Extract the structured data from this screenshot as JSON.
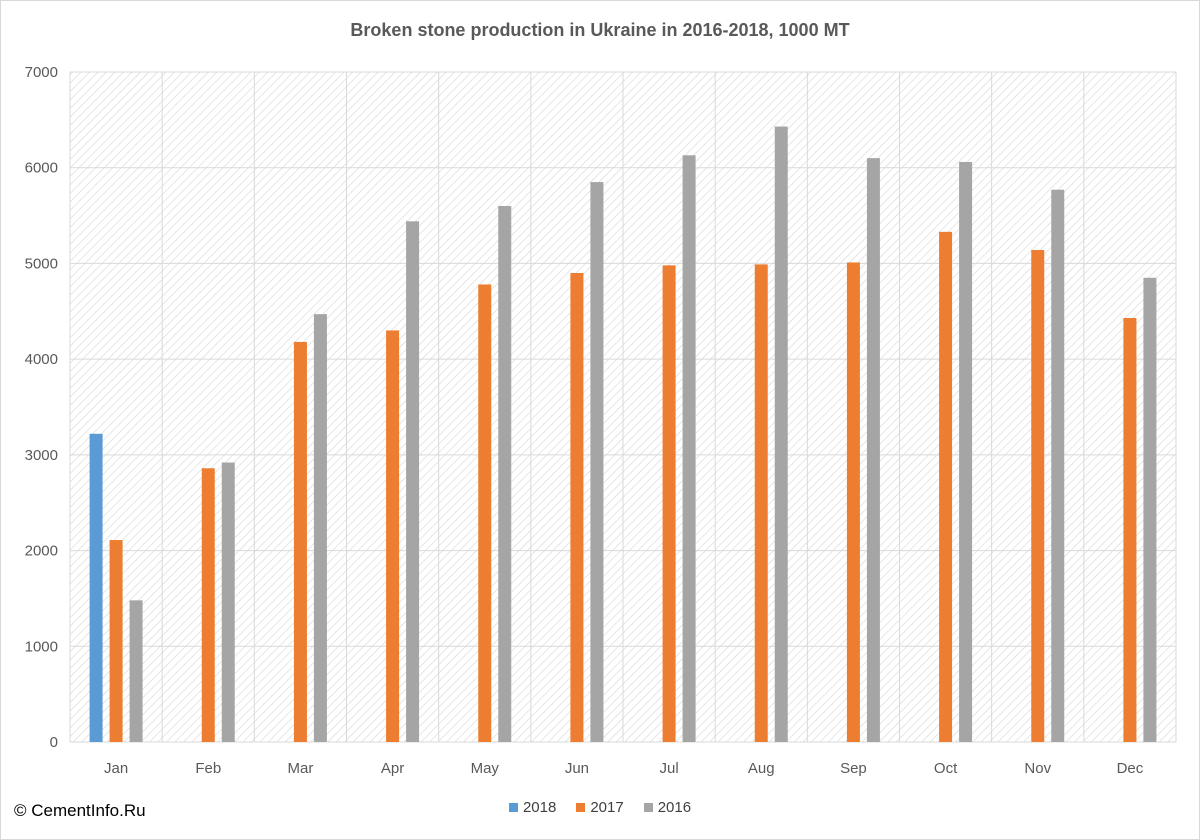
{
  "chart_data": {
    "type": "bar",
    "title": "Broken stone production in Ukraine in 2016-2018, 1000 MT",
    "categories": [
      "Jan",
      "Feb",
      "Mar",
      "Apr",
      "May",
      "Jun",
      "Jul",
      "Aug",
      "Sep",
      "Oct",
      "Nov",
      "Dec"
    ],
    "series": [
      {
        "name": "2018",
        "color": "#5b9bd5",
        "values": [
          3220,
          null,
          null,
          null,
          null,
          null,
          null,
          null,
          null,
          null,
          null,
          null
        ]
      },
      {
        "name": "2017",
        "color": "#ed7d31",
        "values": [
          2110,
          2860,
          4180,
          4300,
          4780,
          4900,
          4980,
          4990,
          5010,
          5330,
          5140,
          4430
        ]
      },
      {
        "name": "2016",
        "color": "#a5a5a5",
        "values": [
          1480,
          2920,
          4470,
          5440,
          5600,
          5850,
          6130,
          6430,
          6100,
          6060,
          5770,
          4850
        ]
      }
    ],
    "ylim": [
      0,
      7000
    ],
    "yticks": [
      0,
      1000,
      2000,
      3000,
      4000,
      5000,
      6000,
      7000
    ],
    "grid": true,
    "legend_position": "bottom"
  },
  "watermark": "© CementInfo.Ru"
}
